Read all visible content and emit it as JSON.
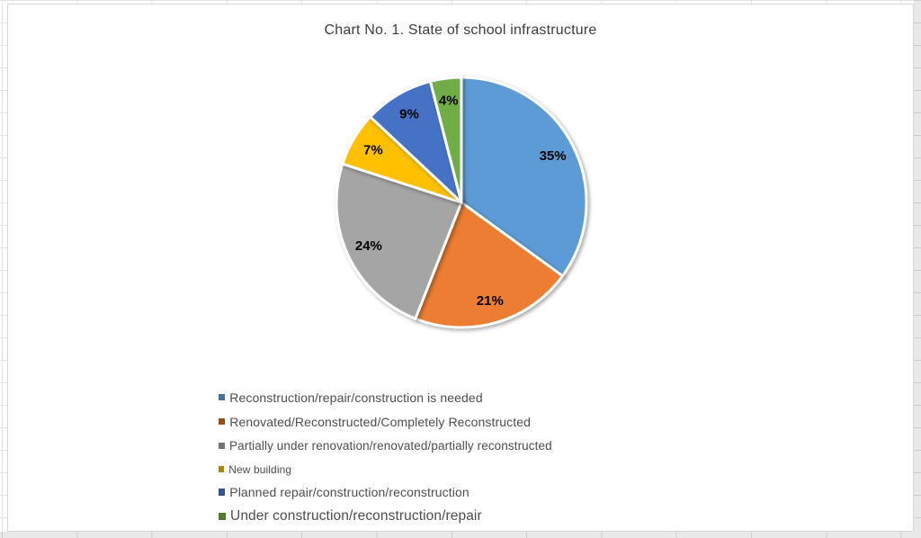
{
  "chart_data": {
    "type": "pie",
    "title": "Chart No. 1. State of school infrastructure",
    "categories": [
      "Reconstruction/repair/construction is needed",
      "Renovated/Reconstructed/Completely Reconstructed",
      "Partially under renovation/renovated/partially reconstructed",
      "New building",
      "Planned repair/construction/reconstruction",
      "Under construction/reconstruction/repair"
    ],
    "values": [
      35,
      21,
      24,
      7,
      9,
      4
    ],
    "data_labels": [
      "35%",
      "21%",
      "24%",
      "7%",
      "9%",
      "4%"
    ],
    "slice_colors": [
      "#5B9BD5",
      "#ED7D31",
      "#A5A5A5",
      "#FFC000",
      "#4472C4",
      "#70AD47"
    ],
    "legend_marker_colors": [
      "#41719C",
      "#9A4D15",
      "#737373",
      "#A98600",
      "#2F5597",
      "#4F7A32"
    ],
    "start_angle_deg": 0,
    "direction": "clockwise",
    "legend_position": "bottom-left",
    "data_label_color": "#000000",
    "title_color": "#3d3d3d"
  }
}
